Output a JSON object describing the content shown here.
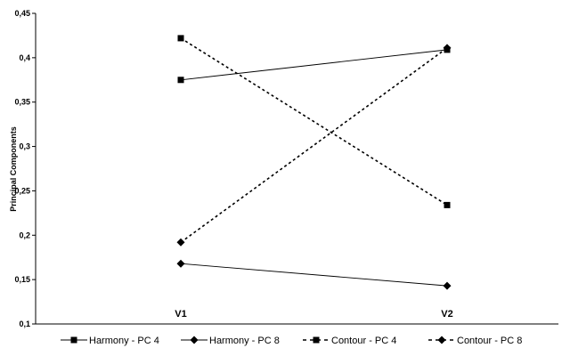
{
  "chart_data": {
    "type": "line",
    "categories": [
      "V1",
      "V2"
    ],
    "ylabel": "Principal Components",
    "ylim": [
      0.1,
      0.45
    ],
    "yticks": [
      "0,1",
      "0,15",
      "0,2",
      "0,25",
      "0,3",
      "0,35",
      "0,4",
      "0,45"
    ],
    "yticks_values": [
      0.1,
      0.15,
      0.2,
      0.25,
      0.3,
      0.35,
      0.4,
      0.45
    ],
    "grid": false,
    "legend_position": "bottom",
    "series": [
      {
        "name": "Harmony - PC 4",
        "values": [
          0.375,
          0.409
        ],
        "marker": "square",
        "line": "solid"
      },
      {
        "name": "Harmony - PC 8",
        "values": [
          0.168,
          0.143
        ],
        "marker": "diamond",
        "line": "solid"
      },
      {
        "name": "Contour - PC 4",
        "values": [
          0.422,
          0.234
        ],
        "marker": "square",
        "line": "dashed"
      },
      {
        "name": "Contour - PC 8",
        "values": [
          0.192,
          0.411
        ],
        "marker": "diamond",
        "line": "dashed"
      }
    ]
  }
}
